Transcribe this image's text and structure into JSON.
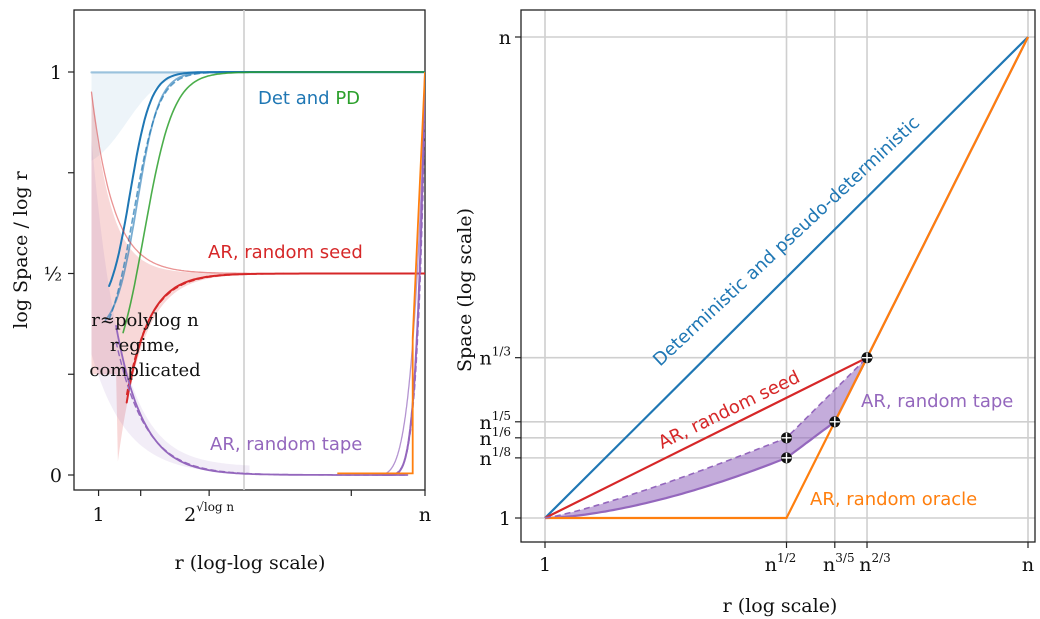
{
  "chart_data": [
    {
      "type": "line",
      "xlabel": "r (log-log scale)",
      "ylabel": "log Space / log r",
      "x_ticks": [
        {
          "label": "1",
          "sup": ""
        },
        {
          "label": "2",
          "sup": "√log n"
        },
        {
          "label": "n",
          "sup": ""
        }
      ],
      "y_ticks": [
        {
          "label": "0"
        },
        {
          "label": "½"
        },
        {
          "label": "1"
        }
      ],
      "annotations": {
        "det_and": "Det and ",
        "pd": "PD",
        "seed": "AR, random seed",
        "tape": "AR, random tape",
        "regime": [
          "r≈polylog n",
          "regime,",
          "complicated"
        ]
      },
      "colors": {
        "det": "#1f77b4",
        "pd": "#2ca02c",
        "seed": "#d62728",
        "tape": "#9467bd",
        "oracle": "#ff7f0e"
      }
    },
    {
      "type": "line",
      "xlabel": "r (log scale)",
      "ylabel": "Space (log scale)",
      "x_ticks": [
        {
          "value": 0,
          "base": "1",
          "sup": ""
        },
        {
          "value": 0.5,
          "base": "n",
          "sup": "1/2"
        },
        {
          "value": 0.6,
          "base": "n",
          "sup": "3/5"
        },
        {
          "value": 0.6667,
          "base": "n",
          "sup": "2/3"
        },
        {
          "value": 1,
          "base": "n",
          "sup": ""
        }
      ],
      "y_ticks": [
        {
          "value": 0,
          "base": "1",
          "sup": ""
        },
        {
          "value": 0.125,
          "base": "n",
          "sup": "1/8"
        },
        {
          "value": 0.1667,
          "base": "n",
          "sup": "1/6"
        },
        {
          "value": 0.2,
          "base": "n",
          "sup": "1/5"
        },
        {
          "value": 0.3333,
          "base": "n",
          "sup": "1/3"
        },
        {
          "value": 1,
          "base": "n",
          "sup": ""
        }
      ],
      "series": [
        {
          "name": "Deterministic and pseudo-deterministic",
          "color": "#1f77b4",
          "x": [
            0,
            1
          ],
          "y": [
            0,
            1
          ]
        },
        {
          "name": "AR, random seed",
          "color": "#d62728",
          "x": [
            0,
            0.6667
          ],
          "y": [
            0,
            0.3333
          ]
        },
        {
          "name": "AR, random tape",
          "color": "#9467bd",
          "x": [
            0,
            0.5,
            0.6,
            0.6667,
            1
          ],
          "y": [
            0,
            0.125,
            0.2,
            0.3333,
            1
          ],
          "upper_x": [
            0,
            0.5,
            0.6667
          ],
          "upper_y": [
            0,
            0.1667,
            0.3333
          ]
        },
        {
          "name": "AR, random oracle",
          "color": "#ff7f0e",
          "x": [
            0,
            0.5,
            0.6,
            0.6667,
            1
          ],
          "y": [
            0,
            0,
            0.2,
            0.3333,
            1
          ]
        }
      ],
      "markers": [
        {
          "x": 0.5,
          "y": 0.125
        },
        {
          "x": 0.5,
          "y": 0.1667
        },
        {
          "x": 0.6,
          "y": 0.2
        },
        {
          "x": 0.6667,
          "y": 0.3333
        }
      ],
      "xlim": [
        -0.02,
        1.0
      ],
      "ylim": [
        -0.05,
        1.03
      ]
    }
  ]
}
